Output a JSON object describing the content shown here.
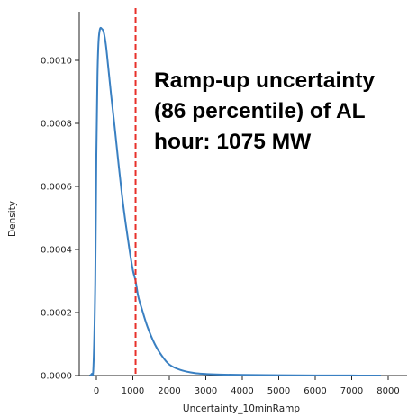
{
  "chart_data": {
    "type": "line",
    "xlabel": "Uncertainty_10minRamp",
    "ylabel": "Density",
    "xlim": [
      -300,
      8000
    ],
    "ylim": [
      0,
      0.00115
    ],
    "xticks": [
      "0",
      "1000",
      "2000",
      "3000",
      "4000",
      "5000",
      "6000",
      "7000",
      "8000"
    ],
    "yticks": [
      "0.0000",
      "0.0002",
      "0.0004",
      "0.0006",
      "0.0008",
      "0.0010"
    ],
    "series": [
      {
        "color": "#3a80c2",
        "x": [
          -180,
          -130,
          -80,
          -30,
          0,
          30,
          60,
          100,
          150,
          200,
          260,
          320,
          400,
          500,
          600,
          700,
          800,
          900,
          1000,
          1075,
          1150,
          1250,
          1400,
          1600,
          1800,
          2000,
          2300,
          2700,
          3200,
          4000,
          5000,
          6000,
          7000,
          7800
        ],
        "y": [
          0,
          5e-06,
          3e-05,
          0.0003,
          0.0007,
          0.00095,
          0.00106,
          0.0011,
          0.0011,
          0.00109,
          0.00105,
          0.000985,
          0.000895,
          0.00079,
          0.00068,
          0.000575,
          0.000485,
          0.000405,
          0.000335,
          0.0003,
          0.00025,
          0.00021,
          0.000155,
          0.0001,
          6.2e-05,
          3.5e-05,
          1.8e-05,
          8e-06,
          4e-06,
          2e-06,
          1e-06,
          5e-07,
          2e-07,
          0
        ]
      }
    ],
    "vline": {
      "x": 1075,
      "color": "#e8302a",
      "style": "dashed"
    },
    "grid": false
  },
  "annotation": {
    "lines": [
      "Ramp-up uncertainty",
      "(86 percentile) of AL",
      "hour: 1075 MW"
    ]
  }
}
